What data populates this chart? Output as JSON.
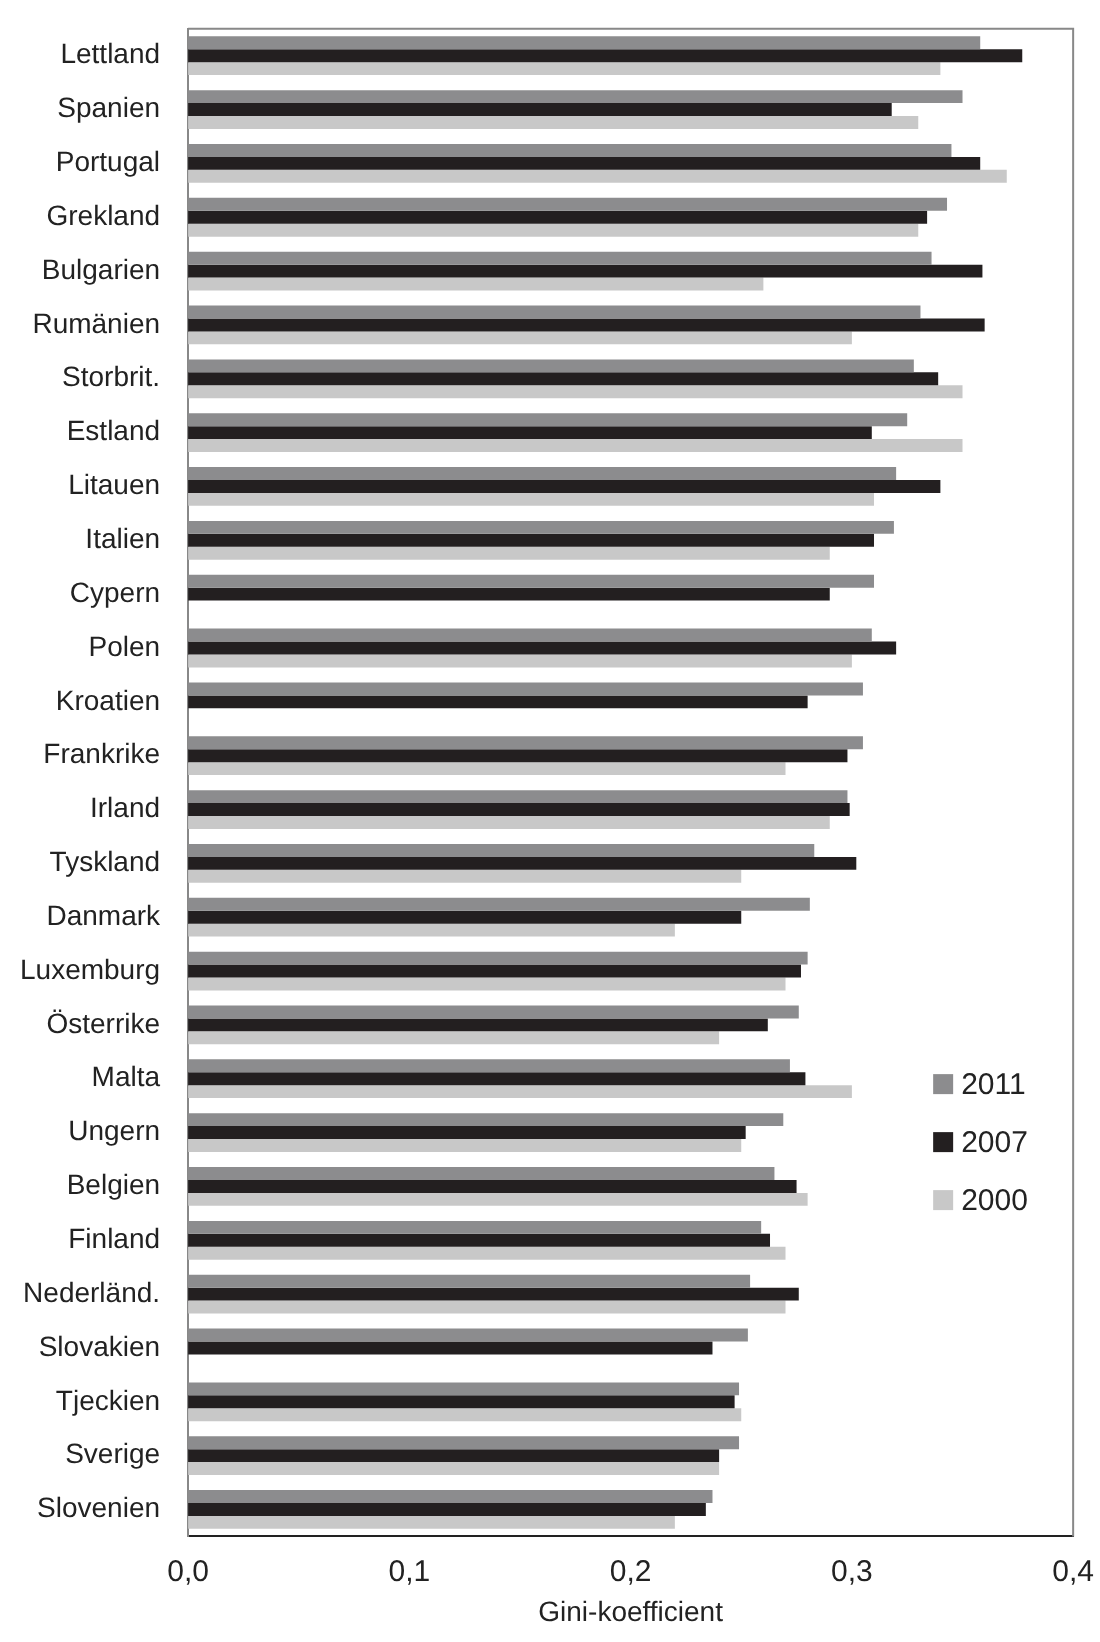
{
  "chart_data": {
    "type": "bar",
    "orientation": "horizontal",
    "xlabel": "Gini-koefficient",
    "categories": [
      "Lettland",
      "Spanien",
      "Portugal",
      "Grekland",
      "Bulgarien",
      "Rumänien",
      "Storbrit.",
      "Estland",
      "Litauen",
      "Italien",
      "Cypern",
      "Polen",
      "Kroatien",
      "Frankrike",
      "Irland",
      "Tyskland",
      "Danmark",
      "Luxemburg",
      "Österrike",
      "Malta",
      "Ungern",
      "Belgien",
      "Finland",
      "Nederländ.",
      "Slovakien",
      "Tjeckien",
      "Sverige",
      "Slovenien"
    ],
    "series": [
      {
        "name": "2011",
        "color": "#8c8c8e",
        "values": [
          0.358,
          0.35,
          0.345,
          0.343,
          0.336,
          0.331,
          0.328,
          0.325,
          0.32,
          0.319,
          0.31,
          0.309,
          0.305,
          0.305,
          0.298,
          0.283,
          0.281,
          0.28,
          0.276,
          0.272,
          0.269,
          0.265,
          0.259,
          0.254,
          0.253,
          0.249,
          0.249,
          0.237
        ]
      },
      {
        "name": "2007",
        "color": "#231f20",
        "values": [
          0.377,
          0.318,
          0.358,
          0.334,
          0.359,
          0.36,
          0.339,
          0.309,
          0.34,
          0.31,
          0.29,
          0.32,
          0.28,
          0.298,
          0.299,
          0.302,
          0.25,
          0.277,
          0.262,
          0.279,
          0.252,
          0.275,
          0.263,
          0.276,
          0.237,
          0.247,
          0.24,
          0.234
        ]
      },
      {
        "name": "2000",
        "color": "#c8c8c8",
        "values": [
          0.34,
          0.33,
          0.37,
          0.33,
          0.26,
          0.3,
          0.35,
          0.35,
          0.31,
          0.29,
          null,
          0.3,
          null,
          0.27,
          0.29,
          0.25,
          0.22,
          0.27,
          0.24,
          0.3,
          0.25,
          0.28,
          0.27,
          0.27,
          null,
          0.25,
          0.24,
          0.22
        ]
      }
    ],
    "xlim": [
      0,
      0.4
    ],
    "xticks": [
      {
        "value": 0,
        "label": "0,0"
      },
      {
        "value": 0.1,
        "label": "0,1"
      },
      {
        "value": 0.2,
        "label": "0,2"
      },
      {
        "value": 0.3,
        "label": "0,3"
      },
      {
        "value": 0.4,
        "label": "0,4"
      }
    ],
    "grid": false,
    "legend": "right"
  }
}
